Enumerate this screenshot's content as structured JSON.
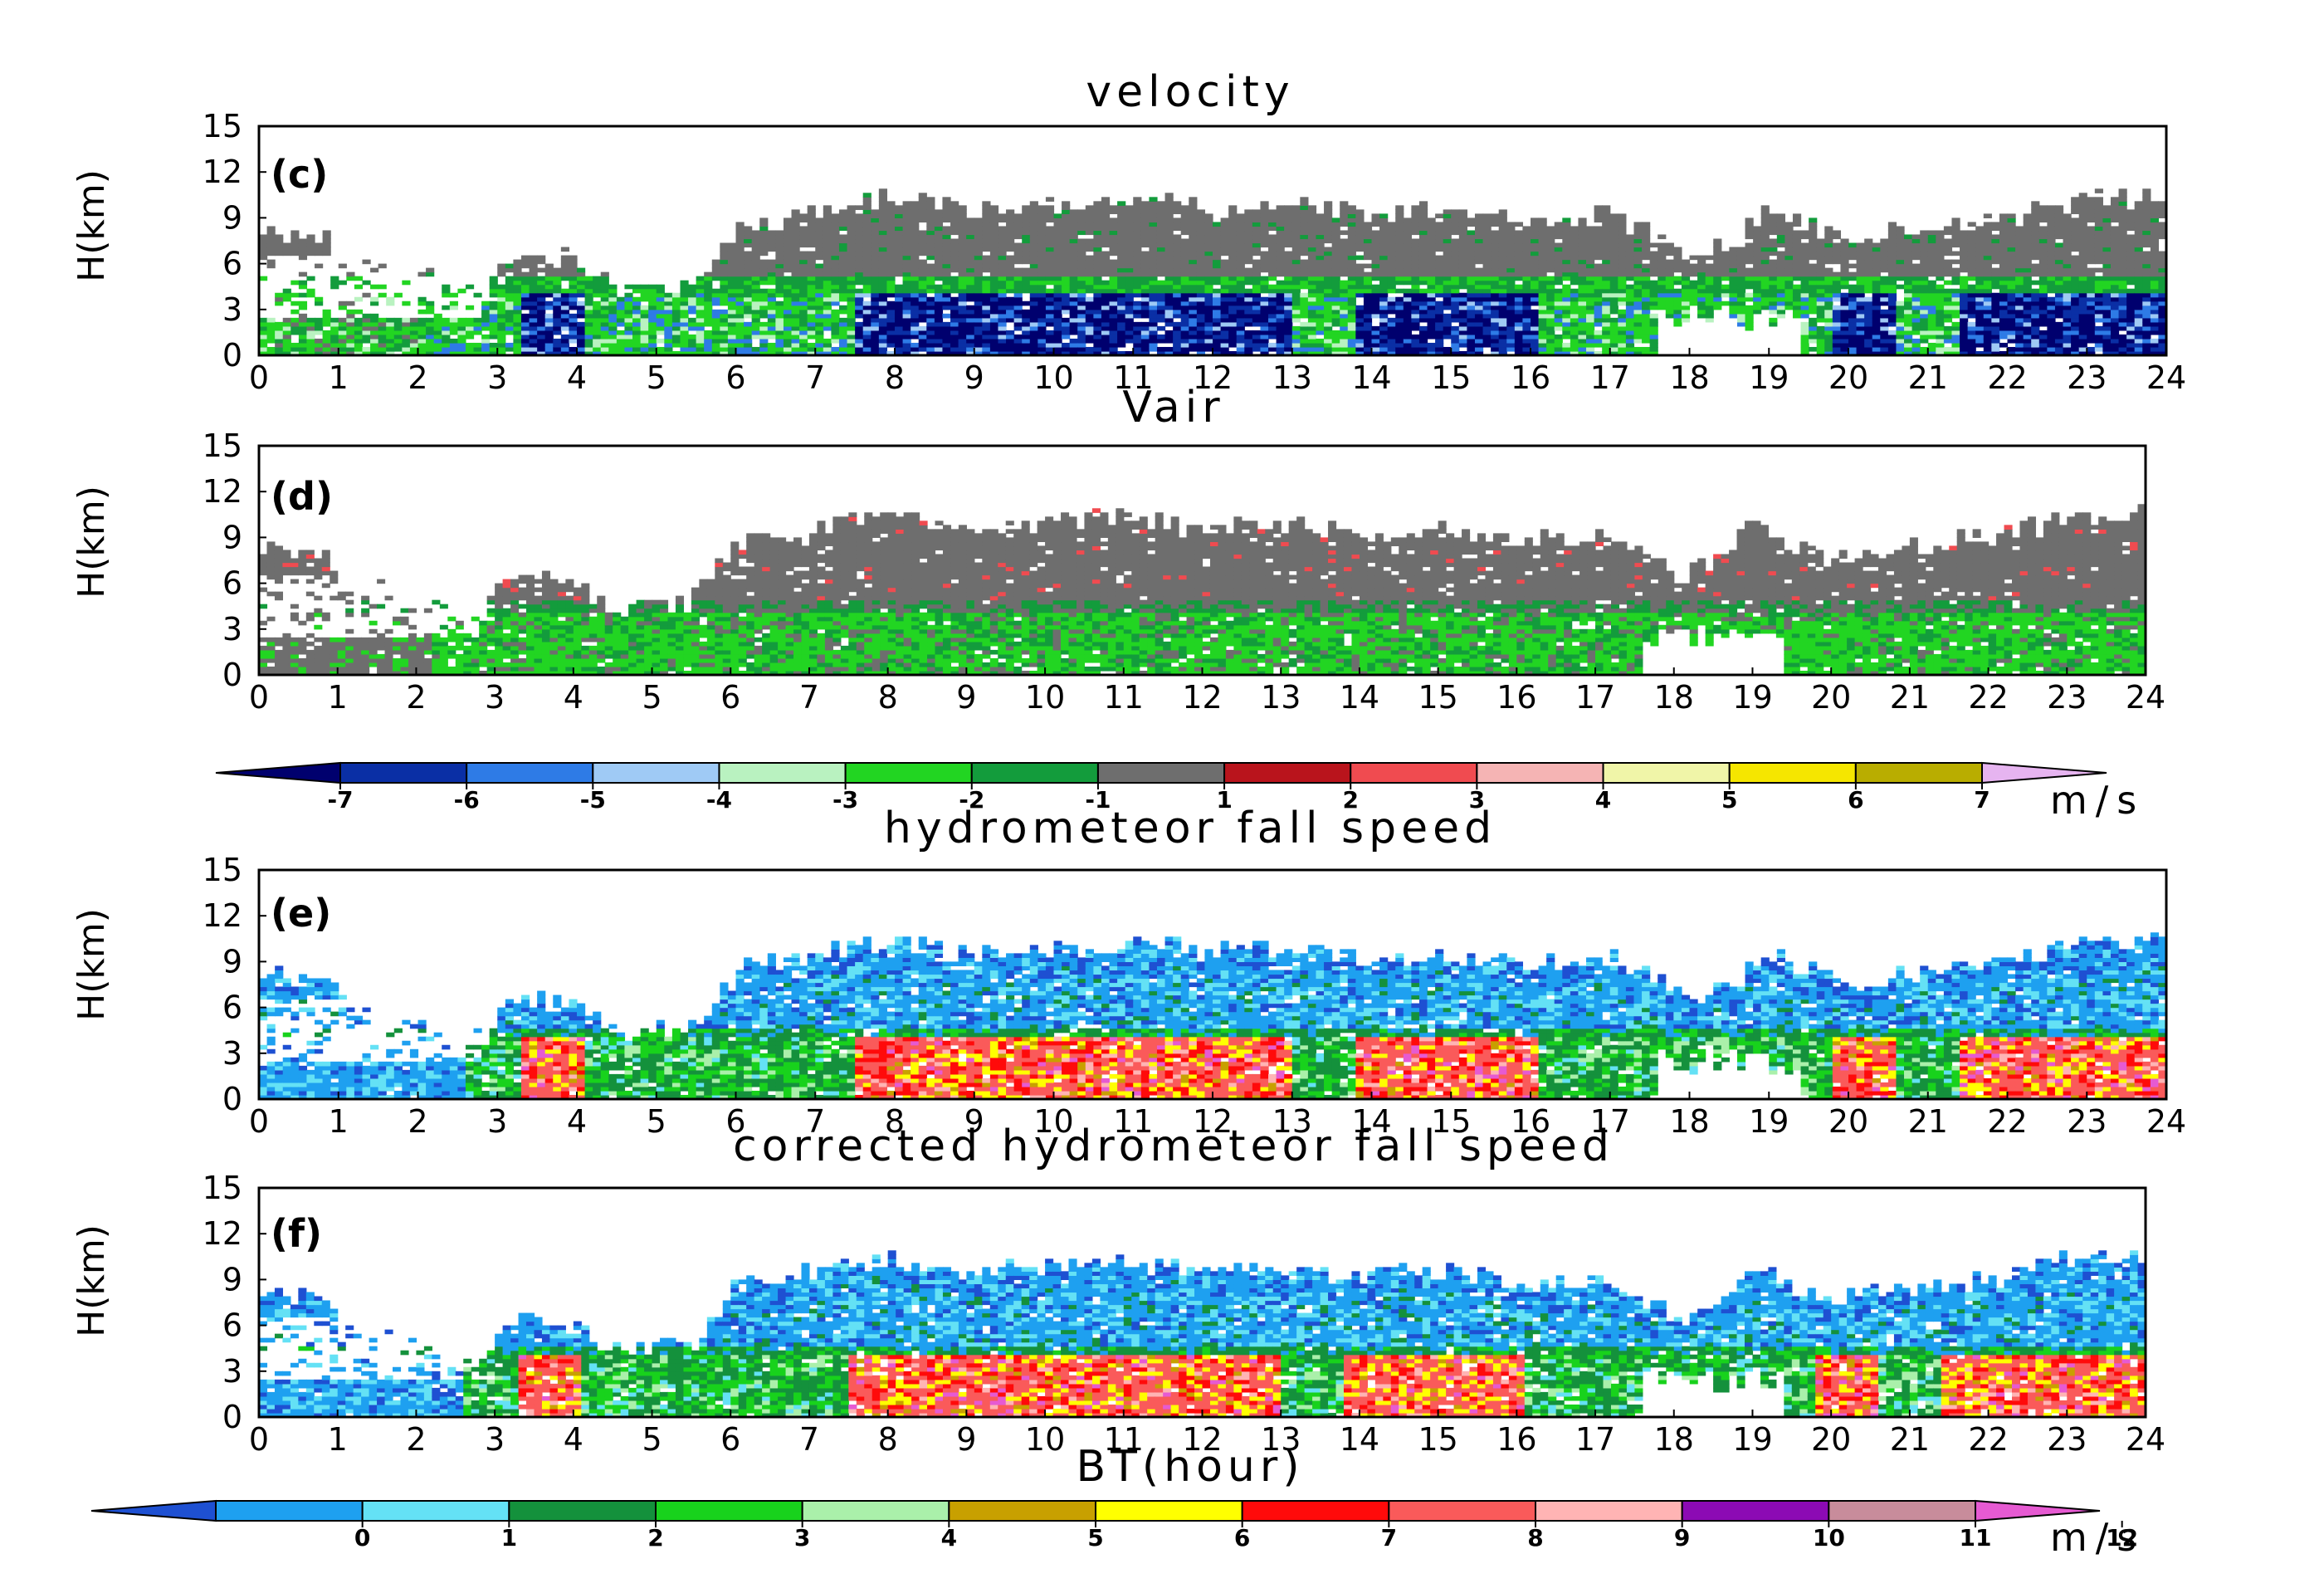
{
  "chart_data": [
    {
      "id": "c",
      "type": "heatmap",
      "title": "velocity",
      "panel_label": "(c)",
      "ylabel": "H(km)",
      "xlabel": "",
      "xlim": [
        0,
        24
      ],
      "ylim": [
        0,
        15
      ],
      "x_ticks": [
        0,
        1,
        2,
        3,
        4,
        5,
        6,
        7,
        8,
        9,
        10,
        11,
        12,
        13,
        14,
        15,
        16,
        17,
        18,
        19,
        20,
        21,
        22,
        23,
        24
      ],
      "y_ticks": [
        0,
        3,
        6,
        9,
        12,
        15
      ],
      "colorbar": "velocity_scale",
      "cloud_top_km": [
        [
          0,
          8.3
        ],
        [
          0.8,
          7.8
        ],
        [
          1.2,
          6
        ],
        [
          2,
          5.2
        ],
        [
          2.8,
          4
        ],
        [
          3.3,
          6.8
        ],
        [
          4,
          6.2
        ],
        [
          4.5,
          4.2
        ],
        [
          5.5,
          4.6
        ],
        [
          6,
          8.5
        ],
        [
          7,
          9.5
        ],
        [
          8,
          10.5
        ],
        [
          9,
          9.5
        ],
        [
          10,
          9.8
        ],
        [
          11,
          10.3
        ],
        [
          12,
          9.5
        ],
        [
          13,
          10
        ],
        [
          14,
          9.2
        ],
        [
          15,
          9.6
        ],
        [
          16,
          8.8
        ],
        [
          17,
          9.2
        ],
        [
          17.5,
          8.2
        ],
        [
          18,
          6.5
        ],
        [
          18.5,
          7.2
        ],
        [
          19,
          9.8
        ],
        [
          19.5,
          8.5
        ],
        [
          20,
          7.5
        ],
        [
          21,
          8.5
        ],
        [
          22,
          9
        ],
        [
          23,
          10.2
        ],
        [
          24,
          10.5
        ]
      ],
      "core_segments_hours": [
        [
          3.3,
          4.1
        ],
        [
          7.5,
          13
        ],
        [
          13.8,
          16.1
        ],
        [
          19.8,
          20.6
        ],
        [
          21.4,
          24
        ]
      ],
      "melting_layer_km": 4
    },
    {
      "id": "d",
      "type": "heatmap",
      "title": "Vair",
      "panel_label": "(d)",
      "ylabel": "H(km)",
      "xlabel": "",
      "xlim": [
        0,
        24
      ],
      "ylim": [
        0,
        15
      ],
      "x_ticks": [
        0,
        1,
        2,
        3,
        4,
        5,
        6,
        7,
        8,
        9,
        10,
        11,
        12,
        13,
        14,
        15,
        16,
        17,
        18,
        19,
        20,
        21,
        22,
        23,
        24
      ],
      "y_ticks": [
        0,
        3,
        6,
        9,
        12,
        15
      ],
      "colorbar": "velocity_scale",
      "cloud_top_km": [
        [
          0,
          8.3
        ],
        [
          0.8,
          7.8
        ],
        [
          1.2,
          6
        ],
        [
          2,
          5.2
        ],
        [
          2.8,
          4
        ],
        [
          3.3,
          6.8
        ],
        [
          4,
          6.2
        ],
        [
          4.5,
          4.2
        ],
        [
          5.5,
          4.6
        ],
        [
          6,
          8.5
        ],
        [
          7,
          9.5
        ],
        [
          8,
          10.5
        ],
        [
          9,
          9.5
        ],
        [
          10,
          9.8
        ],
        [
          11,
          10.3
        ],
        [
          12,
          9.5
        ],
        [
          13,
          10
        ],
        [
          14,
          9.2
        ],
        [
          15,
          9.6
        ],
        [
          16,
          8.8
        ],
        [
          17,
          9.2
        ],
        [
          17.5,
          8.2
        ],
        [
          18,
          6.5
        ],
        [
          18.5,
          7.2
        ],
        [
          19,
          9.8
        ],
        [
          19.5,
          8.5
        ],
        [
          20,
          7.5
        ],
        [
          21,
          8.5
        ],
        [
          22,
          9
        ],
        [
          23,
          10.2
        ],
        [
          24,
          10.5
        ]
      ],
      "melting_layer_km": 4
    },
    {
      "id": "e",
      "type": "heatmap",
      "title": "hydrometeor fall speed",
      "panel_label": "(e)",
      "ylabel": "H(km)",
      "xlabel": "",
      "xlim": [
        0,
        24
      ],
      "ylim": [
        0,
        15
      ],
      "x_ticks": [
        0,
        1,
        2,
        3,
        4,
        5,
        6,
        7,
        8,
        9,
        10,
        11,
        12,
        13,
        14,
        15,
        16,
        17,
        18,
        19,
        20,
        21,
        22,
        23,
        24
      ],
      "y_ticks": [
        0,
        3,
        6,
        9,
        12,
        15
      ],
      "colorbar": "fall_speed_scale",
      "cloud_top_km": [
        [
          0,
          8.3
        ],
        [
          0.8,
          7.8
        ],
        [
          1.2,
          6
        ],
        [
          2,
          5.2
        ],
        [
          2.8,
          4
        ],
        [
          3.3,
          6.8
        ],
        [
          4,
          6.2
        ],
        [
          4.5,
          4.2
        ],
        [
          5.5,
          4.6
        ],
        [
          6,
          8.5
        ],
        [
          7,
          9.5
        ],
        [
          8,
          10.5
        ],
        [
          9,
          9.5
        ],
        [
          10,
          9.8
        ],
        [
          11,
          10.3
        ],
        [
          12,
          9.5
        ],
        [
          13,
          10
        ],
        [
          14,
          9.2
        ],
        [
          15,
          9.6
        ],
        [
          16,
          8.8
        ],
        [
          17,
          9.2
        ],
        [
          17.5,
          8.2
        ],
        [
          18,
          6.5
        ],
        [
          18.5,
          7.2
        ],
        [
          19,
          9.8
        ],
        [
          19.5,
          8.5
        ],
        [
          20,
          7.5
        ],
        [
          21,
          8.5
        ],
        [
          22,
          9
        ],
        [
          23,
          10.2
        ],
        [
          24,
          10.5
        ]
      ],
      "core_segments_hours": [
        [
          3.3,
          4.1
        ],
        [
          7.5,
          13
        ],
        [
          13.8,
          16.1
        ],
        [
          19.8,
          20.6
        ],
        [
          21.4,
          24
        ]
      ],
      "melting_layer_km": 4
    },
    {
      "id": "f",
      "type": "heatmap",
      "title": "corrected hydrometeor fall speed",
      "panel_label": "(f)",
      "ylabel": "H(km)",
      "xlabel": "BT(hour)",
      "xlim": [
        0,
        24
      ],
      "ylim": [
        0,
        15
      ],
      "x_ticks": [
        0,
        1,
        2,
        3,
        4,
        5,
        6,
        7,
        8,
        9,
        10,
        11,
        12,
        13,
        14,
        15,
        16,
        17,
        18,
        19,
        20,
        21,
        22,
        23,
        24
      ],
      "y_ticks": [
        0,
        3,
        6,
        9,
        12,
        15
      ],
      "colorbar": "fall_speed_scale",
      "cloud_top_km": [
        [
          0,
          8.3
        ],
        [
          0.8,
          7.8
        ],
        [
          1.2,
          6
        ],
        [
          2,
          5.2
        ],
        [
          2.8,
          4
        ],
        [
          3.3,
          6.8
        ],
        [
          4,
          6.2
        ],
        [
          4.5,
          4.2
        ],
        [
          5.5,
          4.6
        ],
        [
          6,
          8.5
        ],
        [
          7,
          9.5
        ],
        [
          8,
          10.5
        ],
        [
          9,
          9.5
        ],
        [
          10,
          9.8
        ],
        [
          11,
          10.3
        ],
        [
          12,
          9.5
        ],
        [
          13,
          10
        ],
        [
          14,
          9.2
        ],
        [
          15,
          9.6
        ],
        [
          16,
          8.8
        ],
        [
          17,
          9.2
        ],
        [
          17.5,
          8.2
        ],
        [
          18,
          6.5
        ],
        [
          18.5,
          7.2
        ],
        [
          19,
          9.8
        ],
        [
          19.5,
          8.5
        ],
        [
          20,
          7.5
        ],
        [
          21,
          8.5
        ],
        [
          22,
          9
        ],
        [
          23,
          10.2
        ],
        [
          24,
          10.5
        ]
      ],
      "core_segments_hours": [
        [
          3.3,
          4.1
        ],
        [
          7.5,
          13
        ],
        [
          13.8,
          16.1
        ],
        [
          19.8,
          20.6
        ],
        [
          21.4,
          24
        ]
      ],
      "melting_layer_km": 4
    }
  ],
  "colorbars": {
    "velocity_scale": {
      "unit": "m/s",
      "tick_labels": [
        "-7",
        "-6",
        "-5",
        "-4",
        "-3",
        "-2",
        "-1",
        "1",
        "2",
        "3",
        "4",
        "5",
        "6",
        "7"
      ],
      "colors": [
        "#00006e",
        "#0a2fa5",
        "#2e7be6",
        "#9fcaf5",
        "#b9f2c0",
        "#22d522",
        "#139c3c",
        "#6e6e6e",
        "#b9141c",
        "#f04b50",
        "#f5b4b4",
        "#f0f5a8",
        "#f5e600",
        "#b9ad00",
        "#e6b4f0"
      ]
    },
    "fall_speed_scale": {
      "unit": "m/s",
      "tick_labels": [
        "0",
        "1",
        "2",
        "3",
        "4",
        "5",
        "6",
        "7",
        "8",
        "9",
        "10",
        "11",
        "12"
      ],
      "colors": [
        "#1e50d2",
        "#1ea0f0",
        "#64e1f5",
        "#14913c",
        "#18d21c",
        "#aaf0aa",
        "#c8a000",
        "#ffff00",
        "#ff0a0a",
        "#fa5a5a",
        "#ffb4b4",
        "#8c0ab4",
        "#c88c9b",
        "#e65ad2"
      ]
    }
  }
}
